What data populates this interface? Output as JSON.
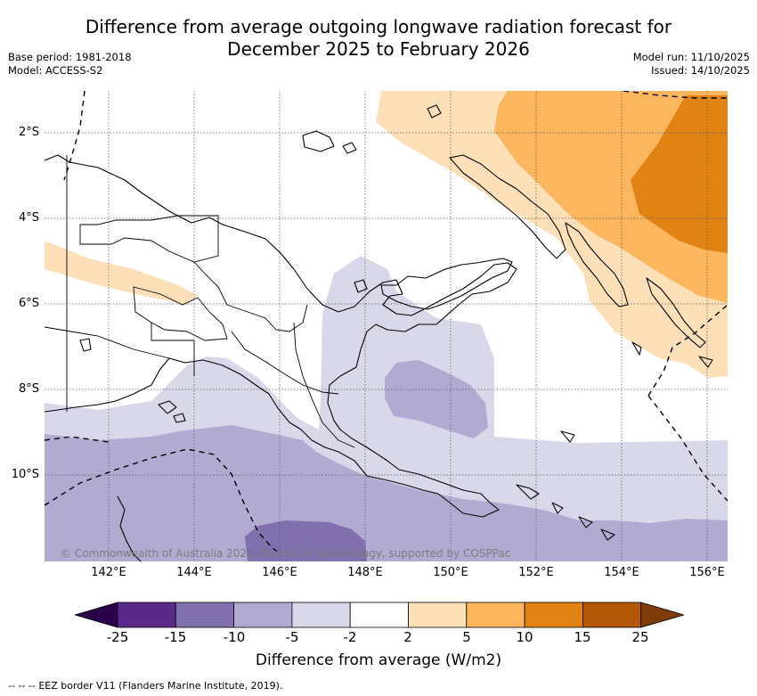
{
  "title_line1": "Difference from average outgoing longwave radiation forecast for",
  "title_line2": "December 2025 to February 2026",
  "base_period": "Base period: 1981-2018",
  "model": "Model: ACCESS-S2",
  "model_run": "Model run: 11/10/2025",
  "issued": "Issued: 14/10/2025",
  "copyright": "© Commonwealth of Australia 2025, Bureau of Meteorology, supported by COSPPac",
  "lat_labels": [
    "2°S",
    "4°S",
    "6°S",
    "8°S",
    "10°S"
  ],
  "lon_labels": [
    "142°E",
    "144°E",
    "146°E",
    "148°E",
    "150°E",
    "152°E",
    "154°E",
    "156°E"
  ],
  "colorbar": {
    "ticks": [
      "-25",
      "-15",
      "-10",
      "-5",
      "-2",
      "2",
      "5",
      "10",
      "15",
      "25"
    ],
    "colors": [
      "#5a2a8a",
      "#8070ae",
      "#b1abd2",
      "#d8d8ea",
      "#ffffff",
      "#fde0b8",
      "#fbb65e",
      "#e08214",
      "#b35806"
    ],
    "under_color": "#2d004b",
    "over_color": "#7f3b08",
    "label": "Difference from average (W/m2)"
  },
  "eez_legend": "EEZ border V11 (Flanders Marine Institute, 2019)."
}
